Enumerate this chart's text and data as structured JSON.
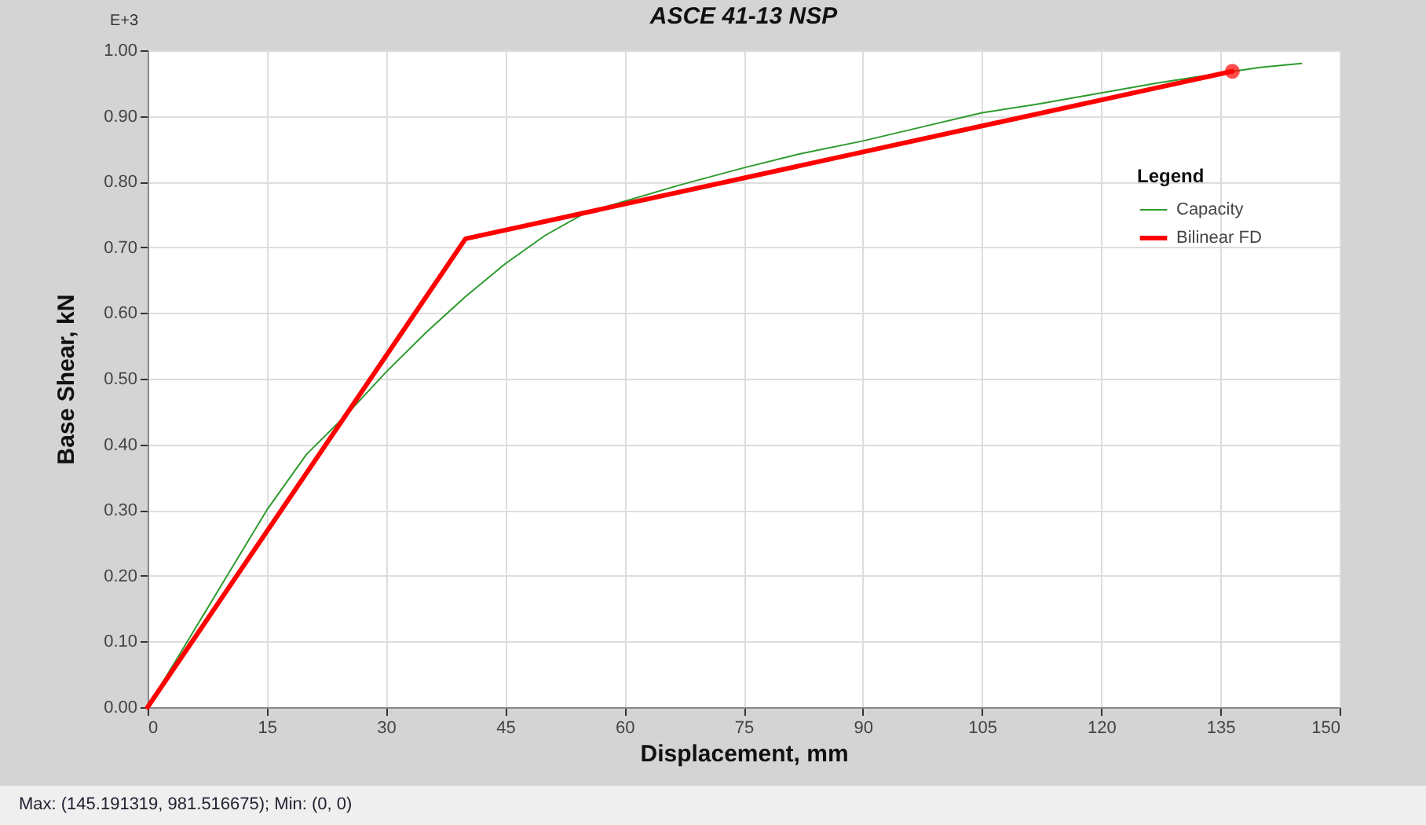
{
  "chart_data": {
    "type": "line",
    "title": "ASCE 41-13 NSP",
    "xlabel": "Displacement, mm",
    "ylabel": "Base Shear, kN",
    "legend_title": "Legend",
    "annotations": [
      "E+3",
      "Max: (145.191319, 981.516675);   Min: (0, 0)"
    ],
    "series": [
      {
        "name": "Capacity",
        "color": "#2e9a2e",
        "x": [
          0,
          5,
          10,
          15,
          20,
          25,
          30,
          35,
          40,
          45,
          50,
          55,
          60,
          67,
          75,
          82,
          90,
          97,
          105,
          112,
          120,
          127,
          135,
          140,
          145.2
        ],
        "values": [
          0,
          0.1,
          0.2,
          0.3,
          0.385,
          0.445,
          0.51,
          0.57,
          0.625,
          0.675,
          0.718,
          0.752,
          0.77,
          0.795,
          0.821,
          0.842,
          0.862,
          0.882,
          0.905,
          0.918,
          0.935,
          0.95,
          0.965,
          0.974,
          0.98
        ]
      },
      {
        "name": "Bilinear FD",
        "color": "#ff0000",
        "x": [
          0,
          40,
          136.5
        ],
        "values": [
          0,
          0.713,
          0.968
        ]
      },
      {
        "type": "scatter",
        "color": "#ff0000",
        "x": [
          136.5
        ],
        "values": [
          0.968
        ]
      }
    ],
    "xlim": [
      0,
      150
    ],
    "xticks": [
      0,
      15,
      30,
      45,
      60,
      75,
      90,
      105,
      120,
      135,
      150
    ],
    "ylim": [
      0,
      1
    ],
    "yticks": [
      {
        "value": 0,
        "label": "0.00"
      },
      {
        "value": 0.1,
        "label": "0.10"
      },
      {
        "value": 0.2,
        "label": "0.20"
      },
      {
        "value": 0.3,
        "label": "0.30"
      },
      {
        "value": 0.4,
        "label": "0.40"
      },
      {
        "value": 0.5,
        "label": "0.50"
      },
      {
        "value": 0.6,
        "label": "0.60"
      },
      {
        "value": 0.7,
        "label": "0.70"
      },
      {
        "value": 0.8,
        "label": "0.80"
      },
      {
        "value": 0.9,
        "label": "0.90"
      },
      {
        "value": 1,
        "label": "1.00"
      }
    ],
    "grid": true,
    "legend": "top right"
  }
}
